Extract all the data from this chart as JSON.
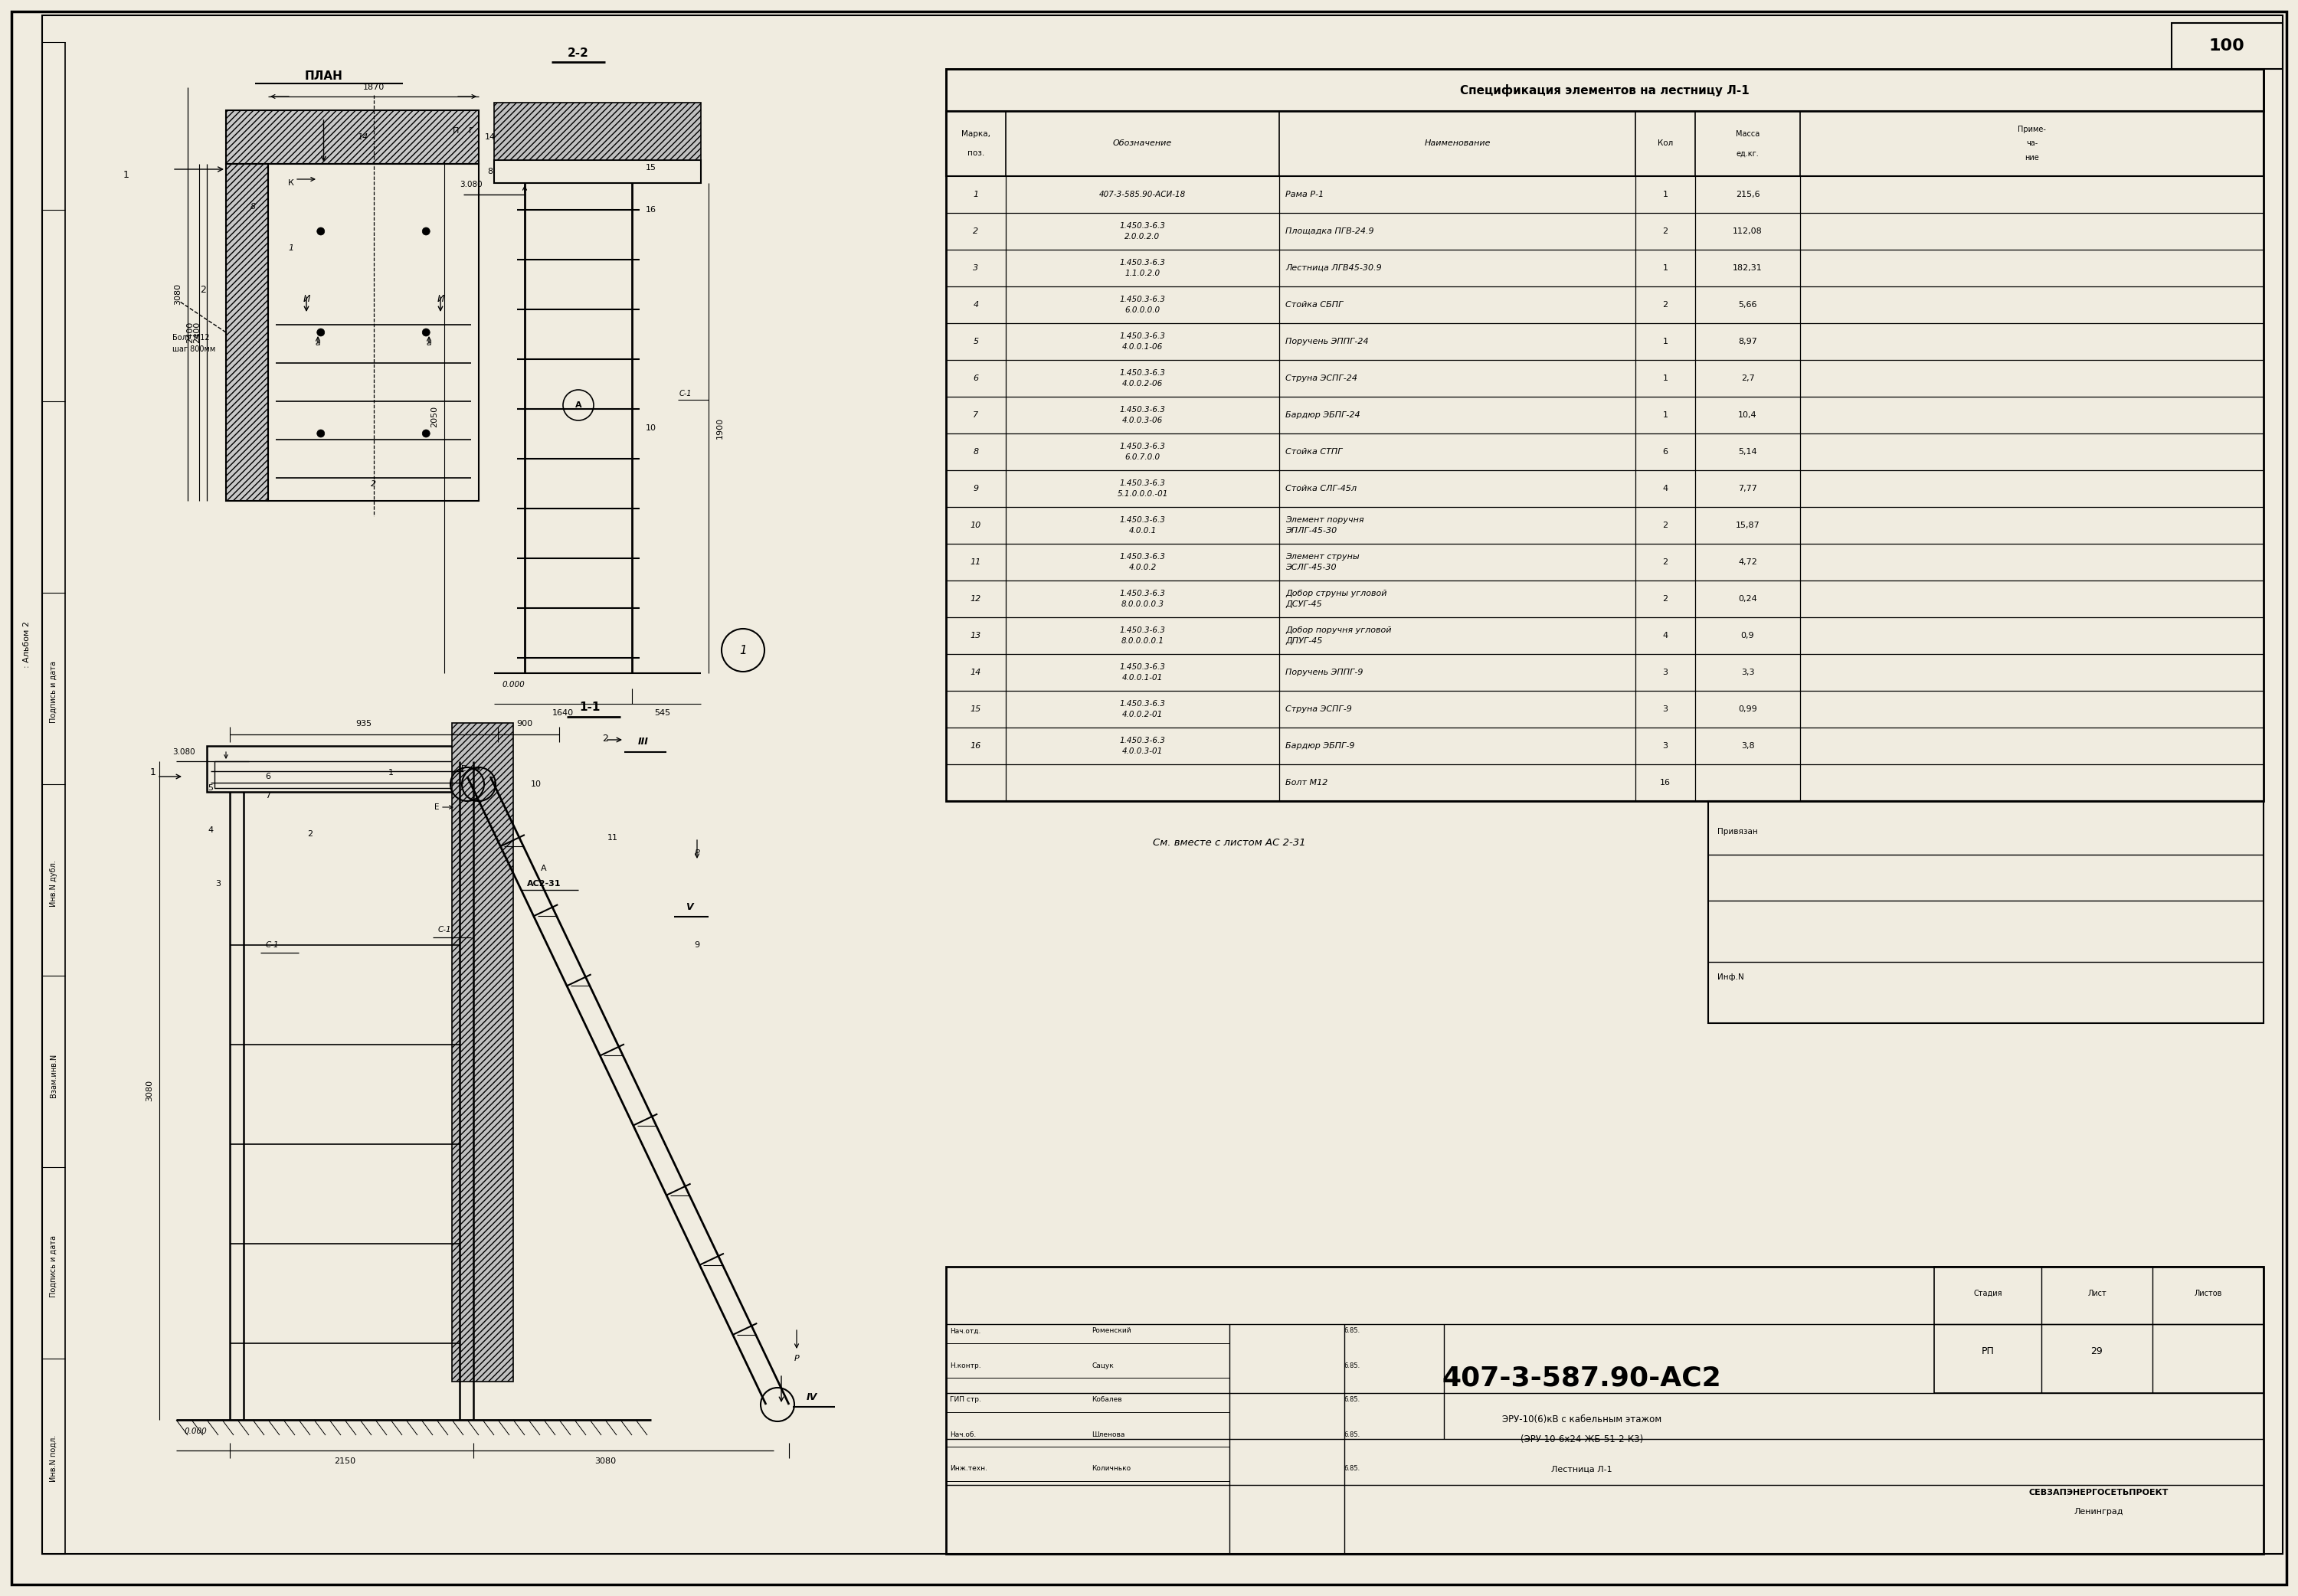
{
  "page_num": "100",
  "bg": "#f0ece0",
  "spec_title": "Спецификация элементов на лестницу Л-1",
  "spec_rows": [
    {
      "pos": "1",
      "oboz1": "407-3-585.90-АСИ-18",
      "oboz2": "",
      "name1": "Рама Р-1",
      "name2": "",
      "kol": "1",
      "mass": "215,6"
    },
    {
      "pos": "2",
      "oboz1": "1.450.3-6.3",
      "oboz2": "2.0.0.2.0",
      "name1": "Площадка ПГВ-24.9",
      "name2": "",
      "kol": "2",
      "mass": "112,08"
    },
    {
      "pos": "3",
      "oboz1": "1.450.3-6.3",
      "oboz2": "1.1.0.2.0",
      "name1": "Лестница ЛГВ45-30.9",
      "name2": "",
      "kol": "1",
      "mass": "182,31"
    },
    {
      "pos": "4",
      "oboz1": "1.450.3-6.3",
      "oboz2": "6.0.0.0.0",
      "name1": "Стойка СБПГ",
      "name2": "",
      "kol": "2",
      "mass": "5,66"
    },
    {
      "pos": "5",
      "oboz1": "1.450.3-6.3",
      "oboz2": "4.0.0.1-06",
      "name1": "Поручень ЭППГ-24",
      "name2": "",
      "kol": "1",
      "mass": "8,97"
    },
    {
      "pos": "6",
      "oboz1": "1.450.3-6.3",
      "oboz2": "4.0.0.2-06",
      "name1": "Струна ЭСПГ-24",
      "name2": "",
      "kol": "1",
      "mass": "2,7"
    },
    {
      "pos": "7",
      "oboz1": "1.450.3-6.3",
      "oboz2": "4.0.0.3-06",
      "name1": "Бардюр ЭБПГ-24",
      "name2": "",
      "kol": "1",
      "mass": "10,4"
    },
    {
      "pos": "8",
      "oboz1": "1.450.3-6.3",
      "oboz2": "6.0.7.0.0",
      "name1": "Стойка СТПГ",
      "name2": "",
      "kol": "6",
      "mass": "5,14"
    },
    {
      "pos": "9",
      "oboz1": "1.450.3-6.3",
      "oboz2": "5.1.0.0.0.-01",
      "name1": "Стойка СЛГ-45л",
      "name2": "",
      "kol": "4",
      "mass": "7,77"
    },
    {
      "pos": "10",
      "oboz1": "1.450.3-6.3",
      "oboz2": "4.0.0.1",
      "name1": "Элемент поручня",
      "name2": "ЭПЛГ-45-30",
      "kol": "2",
      "mass": "15,87"
    },
    {
      "pos": "11",
      "oboz1": "1.450.3-6.3",
      "oboz2": "4.0.0.2",
      "name1": "Элемент струны",
      "name2": "ЭСЛГ-45-30",
      "kol": "2",
      "mass": "4,72"
    },
    {
      "pos": "12",
      "oboz1": "1.450.3-6.3",
      "oboz2": "8.0.0.0.0.3",
      "name1": "Добор струны угловой",
      "name2": "ДСУГ-45",
      "kol": "2",
      "mass": "0,24"
    },
    {
      "pos": "13",
      "oboz1": "1.450.3-6.3",
      "oboz2": "8.0.0.0.0.1",
      "name1": "Добор поручня угловой",
      "name2": "ДПУГ-45",
      "kol": "4",
      "mass": "0,9"
    },
    {
      "pos": "14",
      "oboz1": "1.450.3-6.3",
      "oboz2": "4.0.0.1-01",
      "name1": "Поручень ЭППГ-9",
      "name2": "",
      "kol": "3",
      "mass": "3,3"
    },
    {
      "pos": "15",
      "oboz1": "1.450.3-6.3",
      "oboz2": "4.0.0.2-01",
      "name1": "Струна ЭСПГ-9",
      "name2": "",
      "kol": "3",
      "mass": "0,99"
    },
    {
      "pos": "16",
      "oboz1": "1.450.3-6.3",
      "oboz2": "4.0.0.3-01",
      "name1": "Бардюр ЭБПГ-9",
      "name2": "",
      "kol": "3",
      "mass": "3,8"
    },
    {
      "pos": "",
      "oboz1": "",
      "oboz2": "",
      "name1": "Болт M12",
      "name2": "",
      "kol": "16",
      "mass": ""
    }
  ],
  "tb_nachal": "Нач.отд.",
  "tb_nkontr": "Н.контр.",
  "tb_gip": "ГИП стр.",
  "tb_nachob": "Нач.об.",
  "tb_inzh": "Инж.техн.",
  "tb_names": [
    "Роменский",
    "Сацук",
    "Кобалев",
    "Шленова",
    "Количнько"
  ],
  "tb_dates": [
    "6.85.",
    "6.85.",
    "6.85.",
    "6.85.",
    "6.85."
  ],
  "tb_project1": "ЭРУ-10(6)кВ с кабельным этажом",
  "tb_project2": "(ЭРУ 10-6х24-ЖБ-51-2-К3)",
  "tb_drawnum": "407-3-587.90-АС2",
  "tb_drawname": "Лестница Л-1",
  "tb_stage": "РП",
  "tb_sheet": "29",
  "tb_org": "СЕВЗАПЭНЕРГОСЕТЬПРОЕКТ",
  "tb_city": "Ленинград",
  "see_note": "См. вместе с листом АС 2-31",
  "album": "Альбом 2"
}
